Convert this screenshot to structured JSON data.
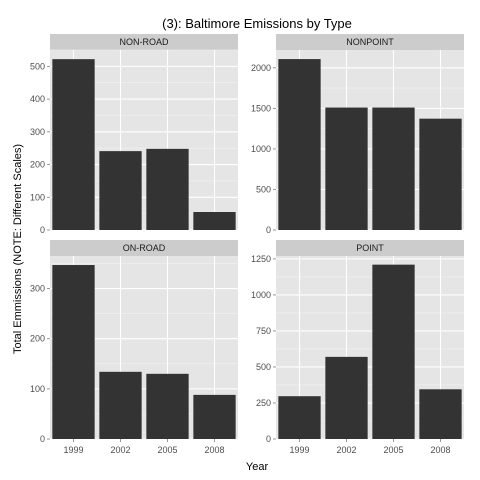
{
  "chart_data": {
    "type": "bar",
    "title": "(3): Baltimore Emissions by Type",
    "xlabel": "Year",
    "ylabel": "Total Emmissions (NOTE: Different Scales)",
    "categories": [
      "1999",
      "2002",
      "2005",
      "2008"
    ],
    "grid": true,
    "facets": [
      {
        "name": "NON-ROAD",
        "values": [
          522,
          241,
          248,
          55
        ],
        "ylim": [
          0,
          550
        ],
        "yticks": [
          0,
          100,
          200,
          300,
          400,
          500
        ]
      },
      {
        "name": "NONPOINT",
        "values": [
          2108,
          1510,
          1510,
          1373
        ],
        "ylim": [
          0,
          2220
        ],
        "yticks": [
          0,
          500,
          1000,
          1500,
          2000
        ]
      },
      {
        "name": "ON-ROAD",
        "values": [
          347,
          134,
          130,
          88
        ],
        "ylim": [
          0,
          365
        ],
        "yticks": [
          0,
          100,
          200,
          300
        ]
      },
      {
        "name": "POINT",
        "values": [
          297,
          570,
          1210,
          345
        ],
        "ylim": [
          0,
          1270
        ],
        "yticks": [
          0,
          250,
          500,
          750,
          1000,
          1250
        ]
      }
    ]
  },
  "colors": {
    "panel_background": "#e5e5e5",
    "strip_background": "#cccccc",
    "grid_major": "#ffffff",
    "bar_fill": "#333333",
    "tick_text": "#4d4d4d"
  }
}
